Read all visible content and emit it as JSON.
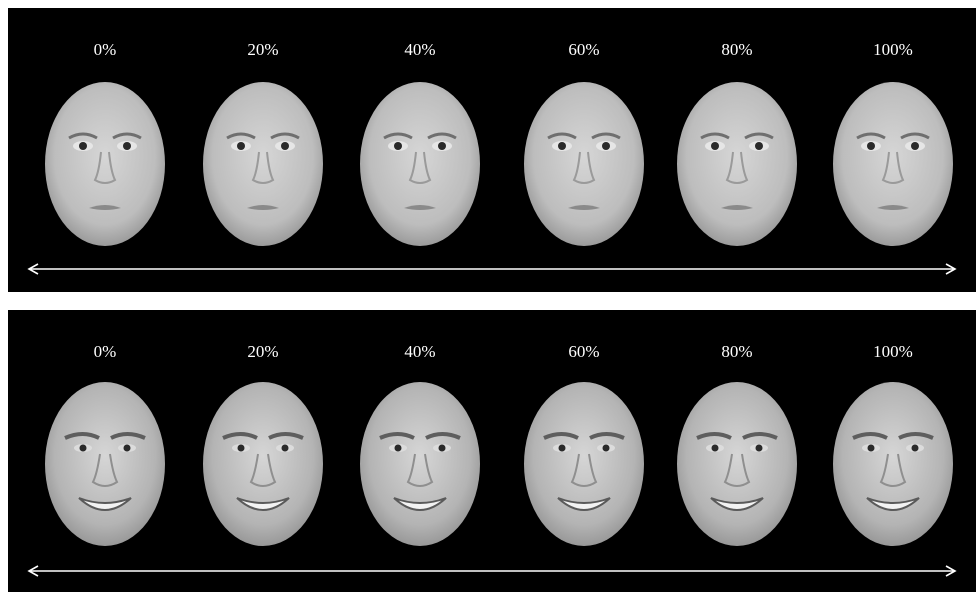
{
  "panels": [
    {
      "id": "female-continuum",
      "labels": [
        "0%",
        "20%",
        "40%",
        "60%",
        "80%",
        "100%"
      ],
      "face_type": "female-neutral-face",
      "colors": {
        "background": "#000000",
        "skin": "#bdbdbd",
        "arrow": "#ffffff"
      }
    },
    {
      "id": "male-continuum",
      "labels": [
        "0%",
        "20%",
        "40%",
        "60%",
        "80%",
        "100%"
      ],
      "face_type": "male-smiling-face",
      "colors": {
        "background": "#000000",
        "skin": "#b4b4b4",
        "arrow": "#ffffff"
      }
    }
  ]
}
